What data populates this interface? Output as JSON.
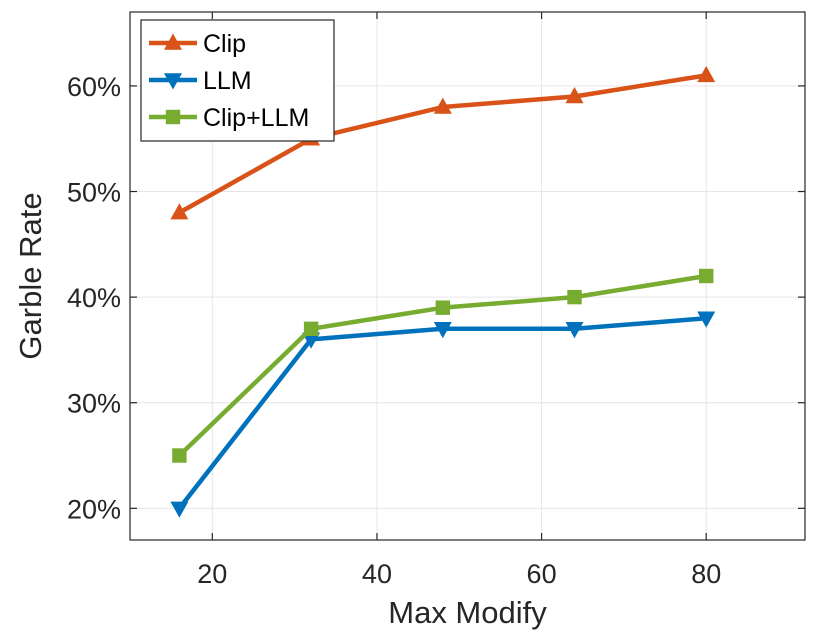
{
  "chart_data": {
    "type": "line",
    "title": "",
    "xlabel": "Max Modify",
    "ylabel": "Garble Rate",
    "x": [
      16,
      32,
      48,
      64,
      80
    ],
    "xlim": [
      10,
      92
    ],
    "ylim": [
      17,
      67
    ],
    "xticks": [
      20,
      40,
      60,
      80
    ],
    "yticks": [
      20,
      30,
      40,
      50,
      60
    ],
    "ytick_format": "percent",
    "grid": true,
    "legend_position": "top-left",
    "series": [
      {
        "name": "Clip",
        "values": [
          48,
          55,
          58,
          59,
          61
        ],
        "color": "#D95319",
        "marker": "triangle-up"
      },
      {
        "name": "LLM",
        "values": [
          20,
          36,
          37,
          37,
          38
        ],
        "color": "#0072BD",
        "marker": "triangle-down"
      },
      {
        "name": "Clip+LLM",
        "values": [
          25,
          37,
          39,
          40,
          42
        ],
        "color": "#77AC30",
        "marker": "square"
      }
    ]
  }
}
